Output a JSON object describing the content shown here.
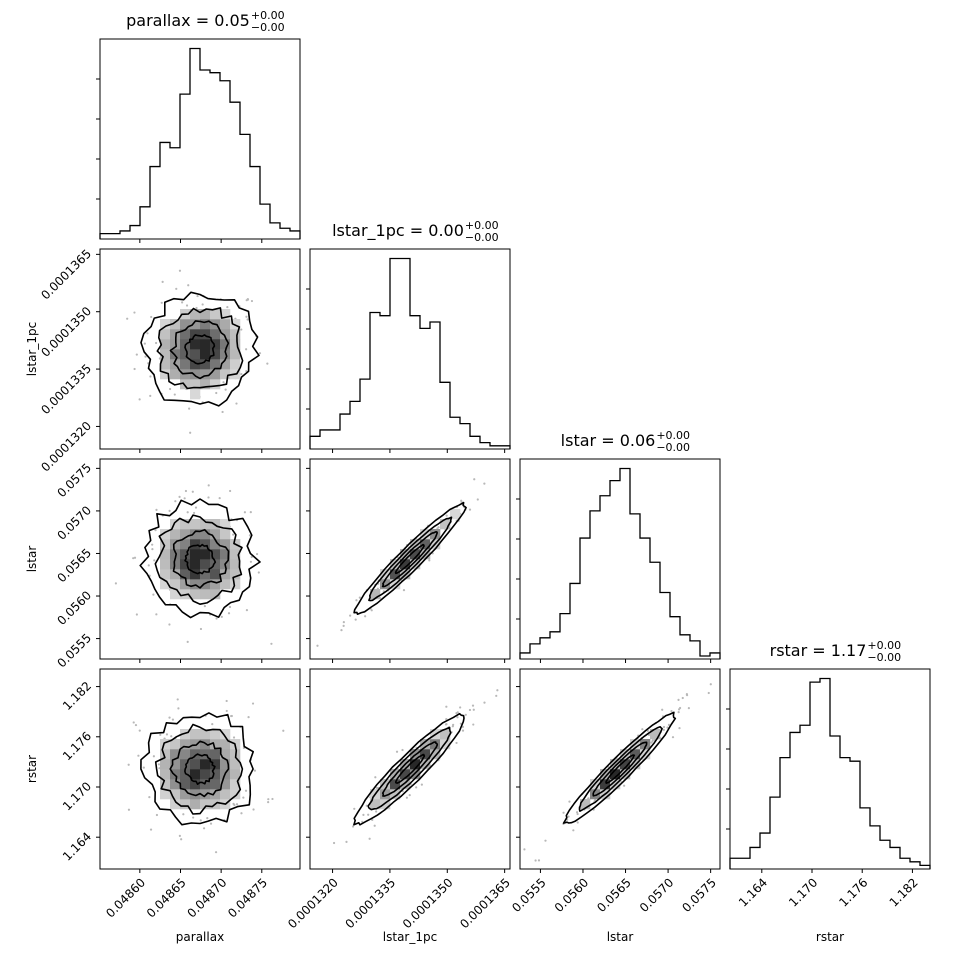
{
  "chart_data": {
    "type": "corner",
    "parameters": [
      "parallax",
      "lstar_1pc",
      "lstar",
      "rstar"
    ],
    "titles": [
      {
        "text": "parallax = 0.05",
        "sup": "+0.00",
        "sub": "−0.00"
      },
      {
        "text": "lstar_1pc = 0.00",
        "sup": "+0.00",
        "sub": "−0.00"
      },
      {
        "text": "lstar = 0.06",
        "sup": "+0.00",
        "sub": "−0.00"
      },
      {
        "text": "rstar = 1.17",
        "sup": "+0.00",
        "sub": "−0.00"
      }
    ],
    "axes": [
      {
        "name": "parallax",
        "range": [
          0.048551,
          0.048797
        ],
        "ticks": [
          0.0486,
          0.04865,
          0.0487,
          0.04875
        ],
        "tick_labels": [
          "0.04860",
          "0.04865",
          "0.04870",
          "0.04875"
        ]
      },
      {
        "name": "lstar_1pc",
        "range": [
          0.00013141,
          0.00013664
        ],
        "ticks": [
          0.000132,
          0.0001335,
          0.000135,
          0.0001365
        ],
        "tick_labels": [
          "0.0001320",
          "0.0001335",
          "0.0001350",
          "0.0001365"
        ]
      },
      {
        "name": "lstar",
        "range": [
          0.05526,
          0.05761
        ],
        "ticks": [
          0.0555,
          0.056,
          0.0565,
          0.057,
          0.0575
        ],
        "tick_labels": [
          "0.0555",
          "0.0560",
          "0.0565",
          "0.0570",
          "0.0575"
        ]
      },
      {
        "name": "rstar",
        "range": [
          1.1602,
          1.1841
        ],
        "ticks": [
          1.164,
          1.17,
          1.176,
          1.182
        ],
        "tick_labels": [
          "1.164",
          "1.170",
          "1.176",
          "1.182"
        ]
      }
    ],
    "histograms": [
      {
        "parameter": "parallax",
        "bins": 20,
        "counts": [
          2,
          2,
          3,
          5,
          12,
          27,
          36,
          34,
          54,
          71,
          63,
          62,
          59,
          51,
          39,
          27,
          13,
          6,
          4,
          3
        ]
      },
      {
        "parameter": "lstar_1pc",
        "bins": 20,
        "counts": [
          4,
          6,
          6,
          11,
          15,
          22,
          43,
          42,
          60,
          60,
          42,
          38,
          40,
          21,
          10,
          8,
          4,
          2,
          1,
          1
        ]
      },
      {
        "parameter": "lstar",
        "bins": 20,
        "counts": [
          2,
          5,
          7,
          9,
          15,
          25,
          40,
          49,
          54,
          59,
          63,
          48,
          40,
          32,
          22,
          14,
          8,
          6,
          1,
          2
        ]
      },
      {
        "parameter": "rstar",
        "bins": 20,
        "counts": [
          3,
          3,
          6,
          10,
          20,
          31,
          38,
          40,
          52,
          53,
          37,
          31,
          30,
          17,
          12,
          8,
          6,
          3,
          2,
          1
        ]
      }
    ],
    "correlations": {
      "1,0": 0.05,
      "2,0": -0.05,
      "2,1": 0.96,
      "3,0": 0.0,
      "3,1": 0.94,
      "3,2": 0.96
    },
    "xlabels": [
      "parallax",
      "lstar_1pc",
      "lstar",
      "rstar"
    ],
    "ylabels": [
      "",
      "lstar_1pc",
      "lstar",
      "rstar"
    ],
    "colors": {
      "line": "#000000",
      "scatter": "#b8b8b8",
      "density": "#000000"
    }
  }
}
